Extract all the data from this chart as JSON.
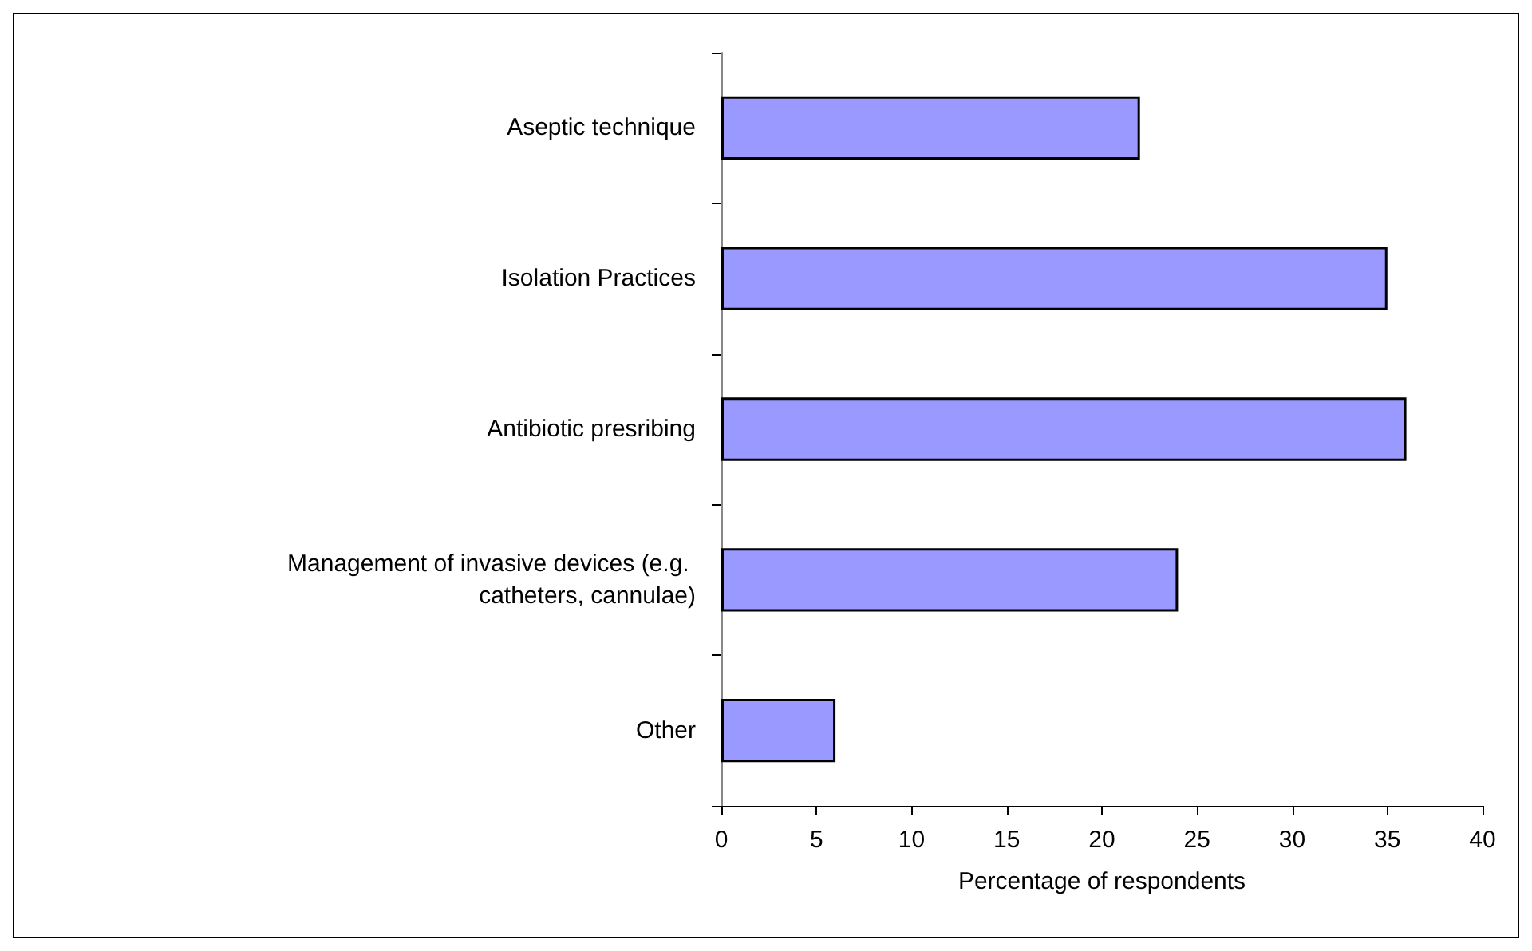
{
  "chart_data": {
    "type": "bar",
    "orientation": "horizontal",
    "xlabel": "Percentage of respondents",
    "categories": [
      "Aseptic technique",
      "Isolation Practices",
      "Antibiotic presribing",
      "Management of invasive devices (e.g. catheters, cannulae)",
      "Other"
    ],
    "values": [
      22,
      35,
      36,
      24,
      6
    ],
    "color": "#9999ff",
    "xlim": [
      0,
      40
    ],
    "xticks": [
      0,
      5,
      10,
      15,
      20,
      25,
      30,
      35,
      40
    ],
    "grid": false
  }
}
